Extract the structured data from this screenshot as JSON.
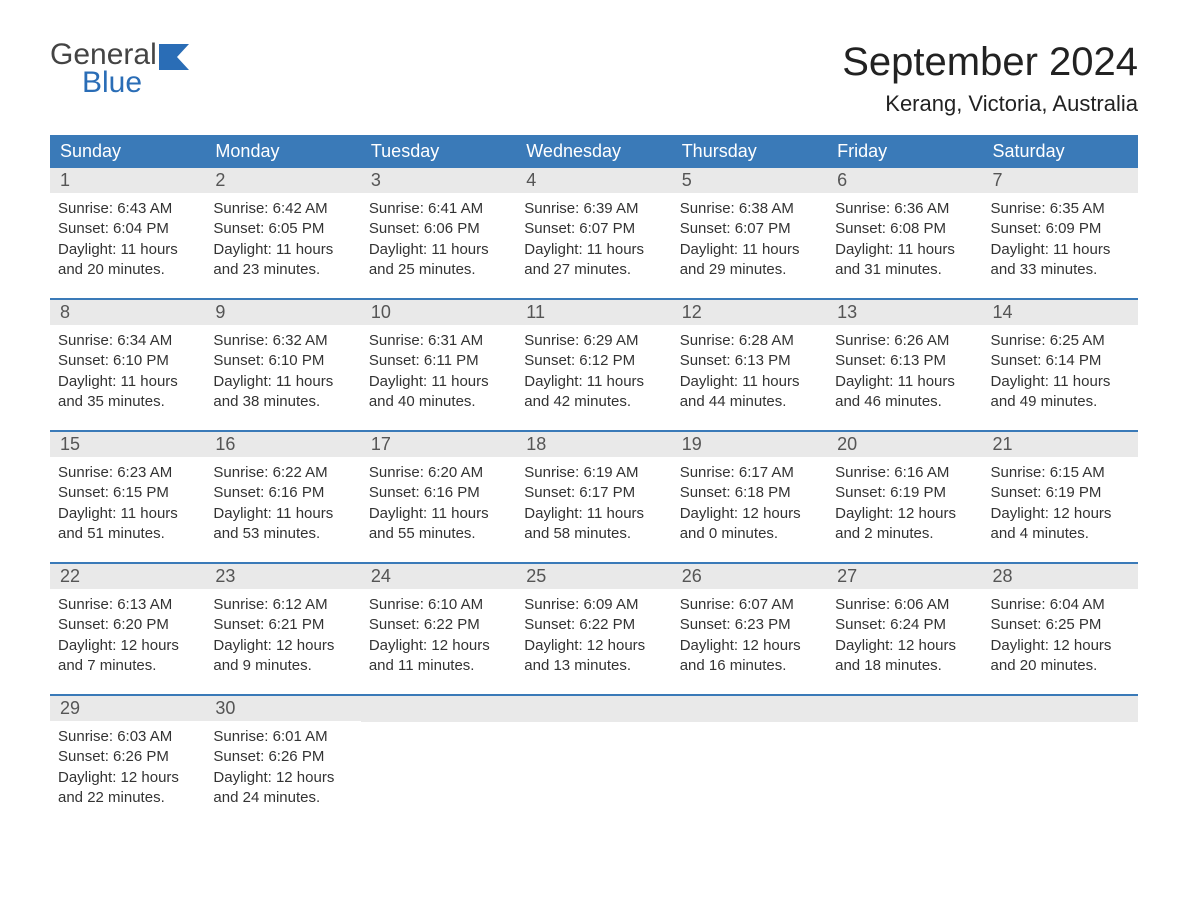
{
  "logo": {
    "text_top": "General",
    "text_bottom": "Blue",
    "accent_color": "#2a6db6"
  },
  "title": "September 2024",
  "location": "Kerang, Victoria, Australia",
  "colors": {
    "header_bg": "#3a7ab8",
    "header_text": "#ffffff",
    "daynum_bg": "#e9e9e9",
    "daynum_text": "#555555",
    "week_border": "#3a7ab8",
    "body_text": "#333333",
    "background": "#ffffff"
  },
  "typography": {
    "title_fontsize": 40,
    "location_fontsize": 22,
    "header_fontsize": 18,
    "daynum_fontsize": 18,
    "cell_fontsize": 15
  },
  "day_headers": [
    "Sunday",
    "Monday",
    "Tuesday",
    "Wednesday",
    "Thursday",
    "Friday",
    "Saturday"
  ],
  "weeks": [
    [
      {
        "n": "1",
        "sr": "6:43 AM",
        "ss": "6:04 PM",
        "dl": "11 hours and 20 minutes."
      },
      {
        "n": "2",
        "sr": "6:42 AM",
        "ss": "6:05 PM",
        "dl": "11 hours and 23 minutes."
      },
      {
        "n": "3",
        "sr": "6:41 AM",
        "ss": "6:06 PM",
        "dl": "11 hours and 25 minutes."
      },
      {
        "n": "4",
        "sr": "6:39 AM",
        "ss": "6:07 PM",
        "dl": "11 hours and 27 minutes."
      },
      {
        "n": "5",
        "sr": "6:38 AM",
        "ss": "6:07 PM",
        "dl": "11 hours and 29 minutes."
      },
      {
        "n": "6",
        "sr": "6:36 AM",
        "ss": "6:08 PM",
        "dl": "11 hours and 31 minutes."
      },
      {
        "n": "7",
        "sr": "6:35 AM",
        "ss": "6:09 PM",
        "dl": "11 hours and 33 minutes."
      }
    ],
    [
      {
        "n": "8",
        "sr": "6:34 AM",
        "ss": "6:10 PM",
        "dl": "11 hours and 35 minutes."
      },
      {
        "n": "9",
        "sr": "6:32 AM",
        "ss": "6:10 PM",
        "dl": "11 hours and 38 minutes."
      },
      {
        "n": "10",
        "sr": "6:31 AM",
        "ss": "6:11 PM",
        "dl": "11 hours and 40 minutes."
      },
      {
        "n": "11",
        "sr": "6:29 AM",
        "ss": "6:12 PM",
        "dl": "11 hours and 42 minutes."
      },
      {
        "n": "12",
        "sr": "6:28 AM",
        "ss": "6:13 PM",
        "dl": "11 hours and 44 minutes."
      },
      {
        "n": "13",
        "sr": "6:26 AM",
        "ss": "6:13 PM",
        "dl": "11 hours and 46 minutes."
      },
      {
        "n": "14",
        "sr": "6:25 AM",
        "ss": "6:14 PM",
        "dl": "11 hours and 49 minutes."
      }
    ],
    [
      {
        "n": "15",
        "sr": "6:23 AM",
        "ss": "6:15 PM",
        "dl": "11 hours and 51 minutes."
      },
      {
        "n": "16",
        "sr": "6:22 AM",
        "ss": "6:16 PM",
        "dl": "11 hours and 53 minutes."
      },
      {
        "n": "17",
        "sr": "6:20 AM",
        "ss": "6:16 PM",
        "dl": "11 hours and 55 minutes."
      },
      {
        "n": "18",
        "sr": "6:19 AM",
        "ss": "6:17 PM",
        "dl": "11 hours and 58 minutes."
      },
      {
        "n": "19",
        "sr": "6:17 AM",
        "ss": "6:18 PM",
        "dl": "12 hours and 0 minutes."
      },
      {
        "n": "20",
        "sr": "6:16 AM",
        "ss": "6:19 PM",
        "dl": "12 hours and 2 minutes."
      },
      {
        "n": "21",
        "sr": "6:15 AM",
        "ss": "6:19 PM",
        "dl": "12 hours and 4 minutes."
      }
    ],
    [
      {
        "n": "22",
        "sr": "6:13 AM",
        "ss": "6:20 PM",
        "dl": "12 hours and 7 minutes."
      },
      {
        "n": "23",
        "sr": "6:12 AM",
        "ss": "6:21 PM",
        "dl": "12 hours and 9 minutes."
      },
      {
        "n": "24",
        "sr": "6:10 AM",
        "ss": "6:22 PM",
        "dl": "12 hours and 11 minutes."
      },
      {
        "n": "25",
        "sr": "6:09 AM",
        "ss": "6:22 PM",
        "dl": "12 hours and 13 minutes."
      },
      {
        "n": "26",
        "sr": "6:07 AM",
        "ss": "6:23 PM",
        "dl": "12 hours and 16 minutes."
      },
      {
        "n": "27",
        "sr": "6:06 AM",
        "ss": "6:24 PM",
        "dl": "12 hours and 18 minutes."
      },
      {
        "n": "28",
        "sr": "6:04 AM",
        "ss": "6:25 PM",
        "dl": "12 hours and 20 minutes."
      }
    ],
    [
      {
        "n": "29",
        "sr": "6:03 AM",
        "ss": "6:26 PM",
        "dl": "12 hours and 22 minutes."
      },
      {
        "n": "30",
        "sr": "6:01 AM",
        "ss": "6:26 PM",
        "dl": "12 hours and 24 minutes."
      },
      null,
      null,
      null,
      null,
      null
    ]
  ],
  "labels": {
    "sunrise_prefix": "Sunrise: ",
    "sunset_prefix": "Sunset: ",
    "daylight_prefix": "Daylight: "
  }
}
